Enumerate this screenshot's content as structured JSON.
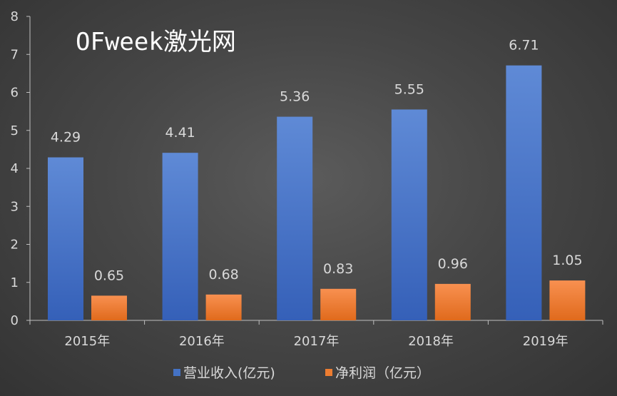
{
  "watermark": "OFweek激光网",
  "chart_data": {
    "type": "bar",
    "title": "",
    "xlabel": "",
    "ylabel": "",
    "categories": [
      "2015年",
      "2016年",
      "2017年",
      "2018年",
      "2019年"
    ],
    "series": [
      {
        "name": "营业收入(亿元)",
        "color": "#4472c4",
        "values": [
          4.29,
          4.41,
          5.36,
          5.55,
          6.71
        ],
        "labels": [
          "4.29",
          "4.41",
          "5.36",
          "5.55",
          "6.71"
        ]
      },
      {
        "name": "净利润（亿元）",
        "color": "#ed7d31",
        "values": [
          0.65,
          0.68,
          0.83,
          0.96,
          1.05
        ],
        "labels": [
          "0.65",
          "0.68",
          "0.83",
          "0.96",
          "1.05"
        ]
      }
    ],
    "ylim": [
      0,
      8
    ],
    "yticks": [
      "0",
      "1",
      "2",
      "3",
      "4",
      "5",
      "6",
      "7",
      "8"
    ],
    "grid": false,
    "legend_position": "bottom"
  }
}
